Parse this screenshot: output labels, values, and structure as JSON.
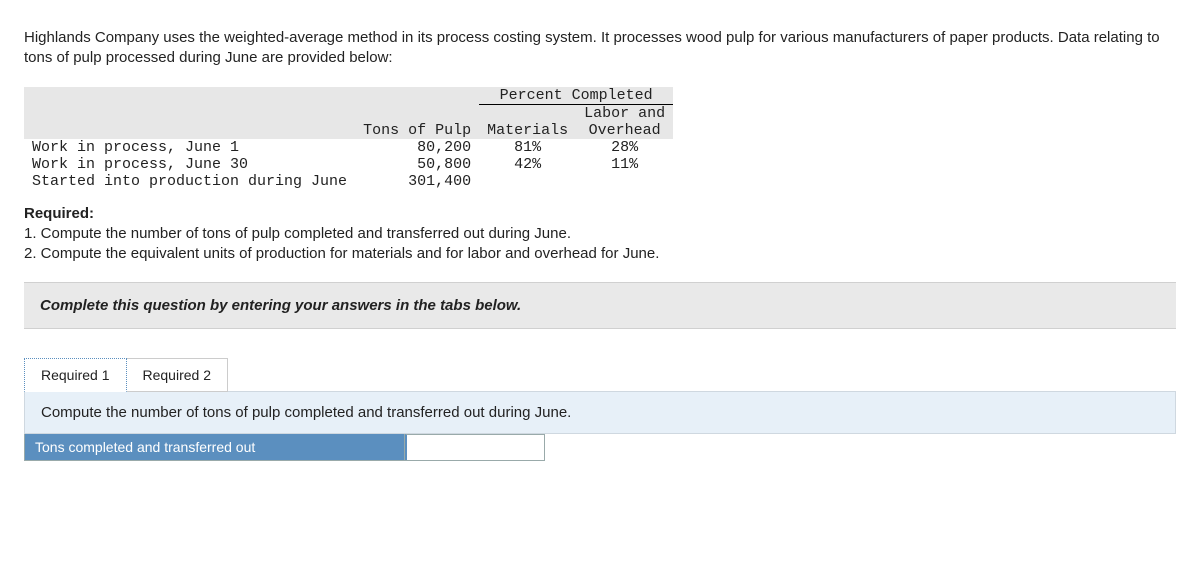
{
  "intro": "Highlands Company uses the weighted-average method in its process costing system. It processes wood pulp for various manufacturers of paper products. Data relating to tons of pulp processed during June are provided below:",
  "table": {
    "percent_completed_header": "Percent Completed",
    "cols": {
      "tons": "Tons of Pulp",
      "materials": "Materials",
      "labor": "Labor and\nOverhead"
    },
    "rows": [
      {
        "label": "Work in process, June 1",
        "tons": "80,200",
        "materials": "81%",
        "labor": "28%"
      },
      {
        "label": "Work in process, June 30",
        "tons": "50,800",
        "materials": "42%",
        "labor": "11%"
      },
      {
        "label": "Started into production during June",
        "tons": "301,400",
        "materials": "",
        "labor": ""
      }
    ]
  },
  "required": {
    "heading": "Required:",
    "items": [
      "1. Compute the number of tons of pulp completed and transferred out during June.",
      "2. Compute the equivalent units of production for materials and for labor and overhead for June."
    ]
  },
  "instruction": "Complete this question by entering your answers in the tabs below.",
  "tabs": {
    "t1": "Required 1",
    "t2": "Required 2"
  },
  "tab_body": {
    "prompt": "Compute the number of tons of pulp completed and transferred out during June.",
    "answer_label": "Tons completed and transferred out",
    "answer_value": ""
  },
  "colors": {
    "header_bg": "#e7e7e7",
    "band_bg": "#e9e9e9",
    "tab_body_bg": "#e7f0f8",
    "accent": "#5b8fbf"
  }
}
